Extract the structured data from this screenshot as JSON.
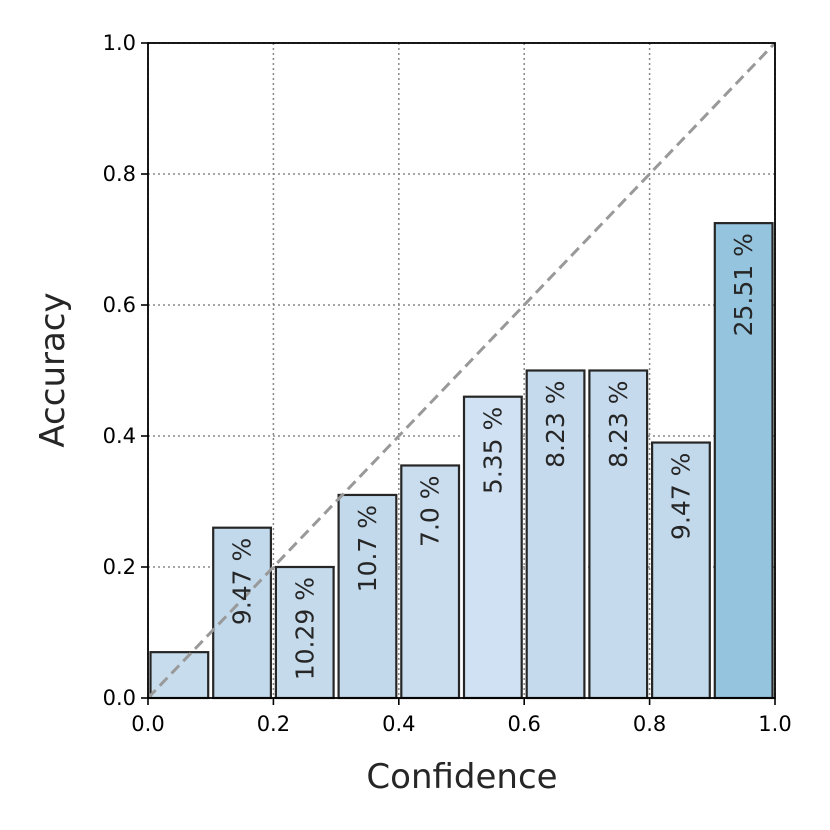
{
  "chart_data": {
    "type": "bar",
    "xlabel": "Confidence",
    "ylabel": "Accuracy",
    "xlim": [
      0.0,
      1.0
    ],
    "ylim": [
      0.0,
      1.0
    ],
    "xticks": [
      "0.0",
      "0.2",
      "0.4",
      "0.6",
      "0.8",
      "1.0"
    ],
    "yticks": [
      "0.0",
      "0.2",
      "0.4",
      "0.6",
      "0.8",
      "1.0"
    ],
    "grid": true,
    "diagonal_reference": true,
    "bins": [
      {
        "x_start": 0.0,
        "x_end": 0.1,
        "accuracy": 0.07,
        "label": ""
      },
      {
        "x_start": 0.1,
        "x_end": 0.2,
        "accuracy": 0.26,
        "label": "9.47 %"
      },
      {
        "x_start": 0.2,
        "x_end": 0.3,
        "accuracy": 0.2,
        "label": "10.29 %"
      },
      {
        "x_start": 0.3,
        "x_end": 0.4,
        "accuracy": 0.31,
        "label": "10.7 %"
      },
      {
        "x_start": 0.4,
        "x_end": 0.5,
        "accuracy": 0.355,
        "label": "7.0 %"
      },
      {
        "x_start": 0.5,
        "x_end": 0.6,
        "accuracy": 0.46,
        "label": "5.35 %"
      },
      {
        "x_start": 0.6,
        "x_end": 0.7,
        "accuracy": 0.5,
        "label": "8.23 %"
      },
      {
        "x_start": 0.7,
        "x_end": 0.8,
        "accuracy": 0.5,
        "label": "8.23 %"
      },
      {
        "x_start": 0.8,
        "x_end": 0.9,
        "accuracy": 0.39,
        "label": "9.47 %"
      },
      {
        "x_start": 0.9,
        "x_end": 1.0,
        "accuracy": 0.725,
        "label": "25.51 %"
      }
    ],
    "bar_colors": [
      "#c7dcec",
      "#c2d9ec",
      "#c5dbec",
      "#c2d9ec",
      "#c9ddef",
      "#cfe1f2",
      "#c5daed",
      "#c5daed",
      "#c2d9ec",
      "#95c4df"
    ],
    "bar_edge_color": "#262626",
    "diagonal_color": "#999999",
    "grid_color": "#888888"
  }
}
